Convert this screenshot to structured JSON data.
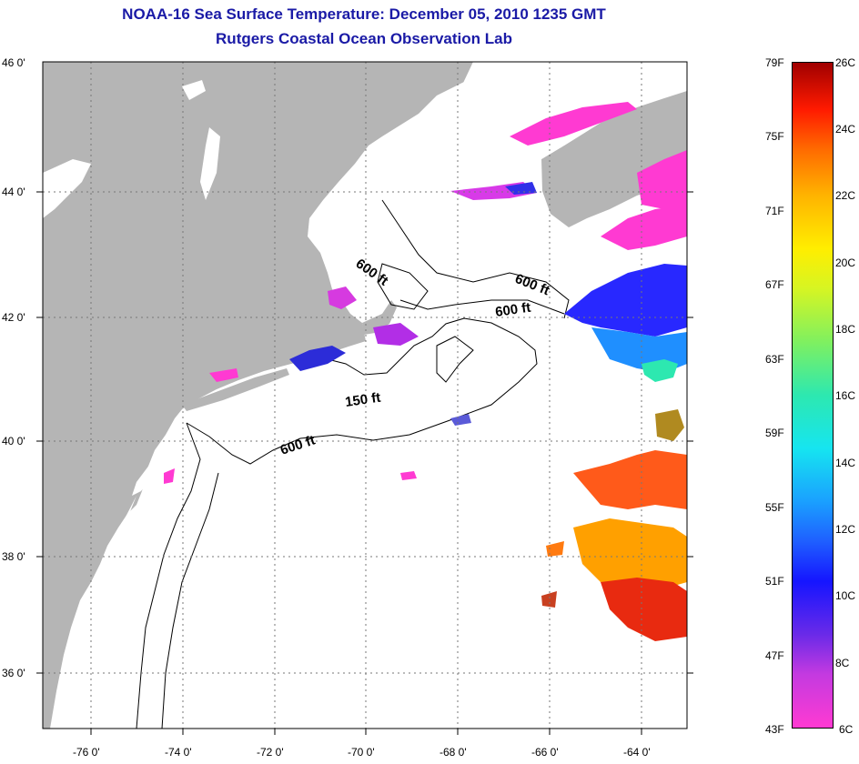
{
  "header": {
    "title": "NOAA-16 Sea Surface Temperature:  December 05, 2010 1235 GMT",
    "subtitle": "Rutgers Coastal Ocean Observation Lab"
  },
  "axes": {
    "lat_labels": [
      "46 0'",
      "44 0'",
      "42 0'",
      "40 0'",
      "38 0'",
      "36 0'"
    ],
    "lon_labels": [
      "-76 0'",
      "-74 0'",
      "-72 0'",
      "-70 0'",
      "-68 0'",
      "-66 0'",
      "-64 0'"
    ],
    "lat_range": [
      35,
      46
    ],
    "lon_range": [
      -77,
      -63
    ]
  },
  "contours": {
    "labels": [
      "600 ft",
      "600 ft",
      "600 ft",
      "150 ft",
      "600 ft"
    ]
  },
  "colorbar": {
    "fahrenheit": [
      "79F",
      "75F",
      "71F",
      "67F",
      "63F",
      "59F",
      "55F",
      "51F",
      "47F",
      "43F"
    ],
    "celsius": [
      "26C",
      "24C",
      "22C",
      "20C",
      "18C",
      "16C",
      "14C",
      "12C",
      "10C",
      "8C",
      "6C"
    ],
    "range_c": [
      6,
      26
    ]
  },
  "colors": {
    "land": "#b5b5b5",
    "title": "#1a1aa6",
    "cold": "#ff3ad2",
    "blue": "#2020ff",
    "warm": "#ff4000"
  }
}
